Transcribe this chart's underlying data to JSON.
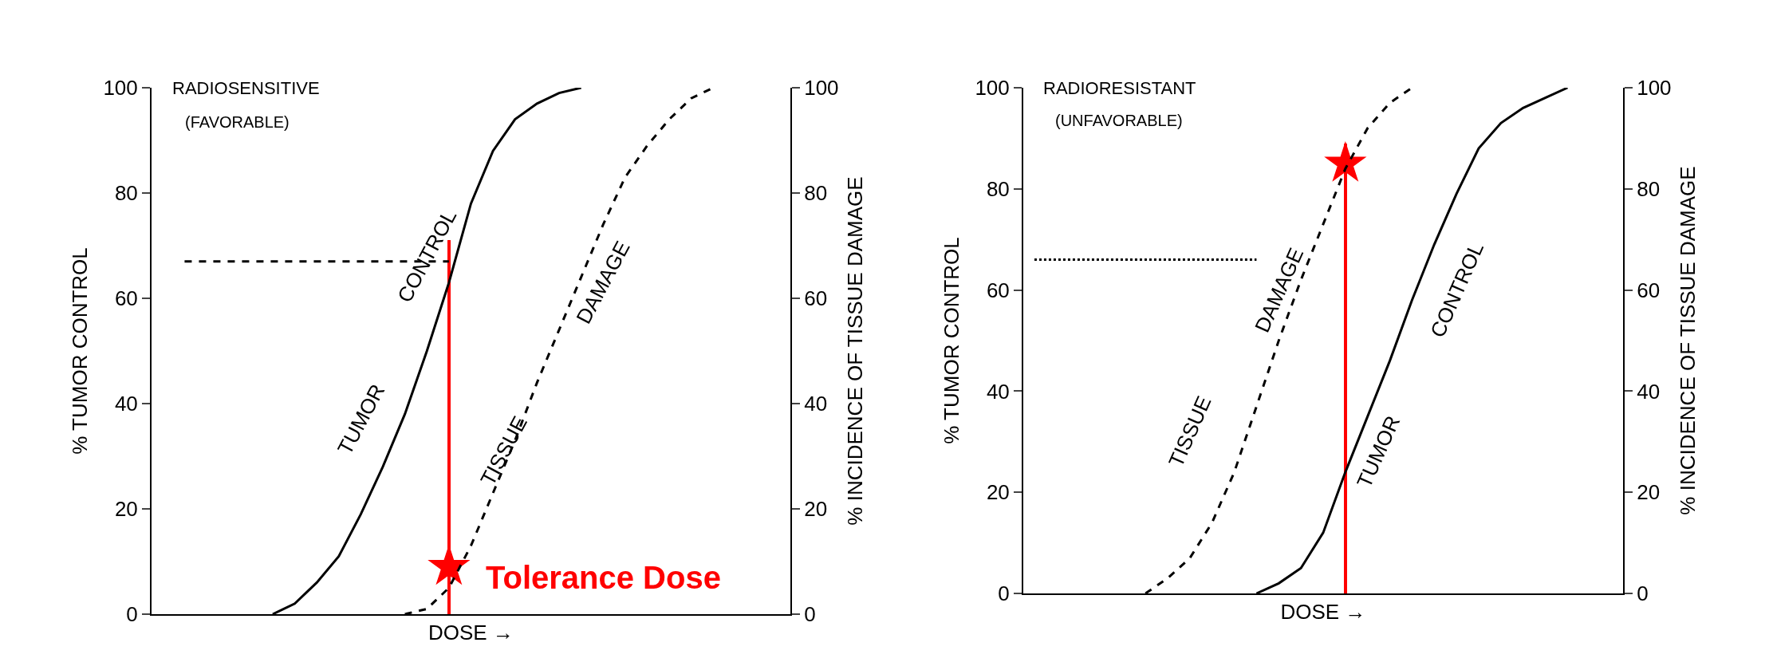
{
  "chart_data": [
    {
      "type": "line",
      "title": "RADIOSENSITIVE",
      "subtitle": "(FAVORABLE)",
      "xlabel": "DOSE →",
      "ylabel": "% TUMOR CONTROL",
      "y2label": "% INCIDENCE OF TISSUE DAMAGE",
      "categories": [
        null,
        null,
        null,
        null,
        null,
        null,
        null,
        null,
        null,
        null,
        null,
        null,
        null,
        null,
        null,
        null,
        null,
        null,
        null,
        null,
        null,
        null,
        null,
        null,
        null,
        null,
        null,
        null,
        null
      ],
      "ylim": [
        0,
        100
      ],
      "yticks": [
        0,
        20,
        40,
        60,
        80,
        100
      ],
      "y2lim": [
        0,
        100
      ],
      "y2ticks": [
        0,
        20,
        40,
        60,
        80,
        100
      ],
      "series": [
        {
          "color": "#000000",
          "line_style": "solid",
          "values": [
            null,
            null,
            null,
            null,
            null,
            0,
            2,
            6,
            11,
            19,
            28,
            38,
            50,
            63,
            78,
            88,
            94,
            97,
            99,
            100,
            null,
            null,
            null,
            null,
            null,
            null,
            null,
            null,
            null
          ]
        },
        {
          "color": "#000000",
          "line_style": "dashed",
          "axis": "y2",
          "values": [
            null,
            null,
            null,
            null,
            null,
            null,
            null,
            null,
            null,
            null,
            null,
            0,
            1,
            5,
            13,
            23,
            33,
            44,
            54,
            64,
            74,
            83,
            89,
            94,
            98,
            100,
            null,
            null,
            null
          ]
        },
        {
          "color": "#000000",
          "line_style": "dashed",
          "values": [
            null,
            67,
            67,
            67,
            67,
            67,
            67,
            67,
            67,
            67,
            67,
            67,
            67,
            67,
            null,
            null,
            null,
            null,
            null,
            null,
            null,
            null,
            null,
            null,
            null,
            null,
            null,
            null,
            null
          ]
        },
        {
          "type": "bar",
          "color": "#ff0000",
          "values": [
            null,
            null,
            null,
            null,
            null,
            null,
            null,
            null,
            null,
            null,
            null,
            null,
            null,
            71,
            null,
            null,
            null,
            null,
            null,
            null,
            null,
            null,
            null,
            null,
            null,
            null,
            null,
            null,
            null
          ]
        },
        {
          "type": "scatter",
          "marker": "star",
          "color": "#ff0000",
          "values": [
            null,
            null,
            null,
            null,
            null,
            null,
            null,
            null,
            null,
            null,
            null,
            null,
            null,
            9,
            null,
            null,
            null,
            null,
            null,
            null,
            null,
            null,
            null,
            null,
            null,
            null,
            null,
            null,
            null
          ]
        }
      ],
      "annotations": [
        "TUMOR",
        "CONTROL",
        "TISSUE",
        "DAMAGE",
        "Tolerance Dose"
      ]
    },
    {
      "type": "line",
      "title": "RADIORESISTANT",
      "subtitle": "(UNFAVORABLE)",
      "xlabel": "DOSE →",
      "ylabel": "% TUMOR CONTROL",
      "y2label": "% INCIDENCE OF TISSUE DAMAGE",
      "categories": [
        null,
        null,
        null,
        null,
        null,
        null,
        null,
        null,
        null,
        null,
        null,
        null,
        null,
        null,
        null,
        null,
        null,
        null,
        null,
        null,
        null,
        null,
        null,
        null,
        null,
        null,
        null
      ],
      "ylim": [
        0,
        100
      ],
      "yticks": [
        0,
        20,
        40,
        60,
        80,
        100
      ],
      "y2lim": [
        0,
        100
      ],
      "y2ticks": [
        0,
        20,
        40,
        60,
        80,
        100
      ],
      "series": [
        {
          "color": "#000000",
          "line_style": "solid",
          "values": [
            null,
            null,
            null,
            null,
            null,
            null,
            null,
            null,
            null,
            null,
            0,
            2,
            5,
            12,
            24,
            35,
            46,
            58,
            69,
            79,
            88,
            93,
            96,
            98,
            100,
            null,
            null
          ]
        },
        {
          "color": "#000000",
          "line_style": "dashed",
          "axis": "y2",
          "values": [
            null,
            null,
            null,
            null,
            null,
            0,
            3,
            7,
            14,
            24,
            37,
            50,
            62,
            73,
            84,
            92,
            97,
            100,
            null,
            null,
            null,
            null,
            null,
            null,
            null,
            null,
            null
          ]
        },
        {
          "color": "#000000",
          "line_style": "dotted",
          "values": [
            66,
            66,
            66,
            66,
            66,
            66,
            66,
            66,
            66,
            66,
            66,
            null,
            null,
            null,
            null,
            null,
            null,
            null,
            null,
            null,
            null,
            null,
            null,
            null,
            null,
            null,
            null
          ]
        },
        {
          "type": "bar",
          "color": "#ff0000",
          "values": [
            null,
            null,
            null,
            null,
            null,
            null,
            null,
            null,
            null,
            null,
            null,
            null,
            null,
            null,
            89,
            null,
            null,
            null,
            null,
            null,
            null,
            null,
            null,
            null,
            null,
            null,
            null
          ]
        },
        {
          "type": "scatter",
          "marker": "star",
          "color": "#ff0000",
          "values": [
            null,
            null,
            null,
            null,
            null,
            null,
            null,
            null,
            null,
            null,
            null,
            null,
            null,
            null,
            85,
            null,
            null,
            null,
            null,
            null,
            null,
            null,
            null,
            null,
            null,
            null,
            null
          ]
        }
      ],
      "annotations": [
        "TISSUE",
        "DAMAGE",
        "TUMOR",
        "CONTROL"
      ]
    }
  ]
}
